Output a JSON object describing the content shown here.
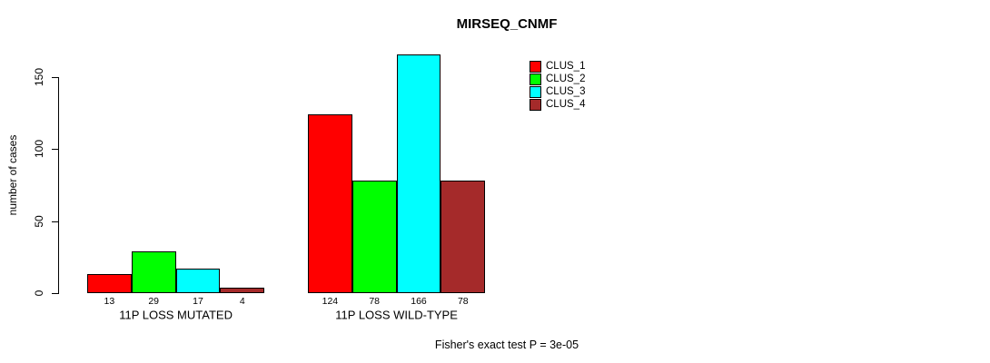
{
  "colors": {
    "background": "#FFFFFF",
    "axis": "#000000",
    "text": "#000000",
    "clus_1": "#FF0000",
    "clus_2": "#00FF00",
    "clus_3": "#00FFFF",
    "clus_4": "#A52A2A"
  },
  "chart_data": {
    "type": "bar",
    "title": "MIRSEQ_CNMF",
    "xlabel": "",
    "ylabel": "number of cases",
    "ylim": [
      0,
      166
    ],
    "yticks": [
      0,
      50,
      100,
      150
    ],
    "grid": false,
    "legend_position": "top-right",
    "categories": [
      "11P LOSS MUTATED",
      "11P LOSS WILD-TYPE"
    ],
    "series": [
      {
        "name": "CLUS_1",
        "color": "#FF0000",
        "values": [
          13,
          124
        ]
      },
      {
        "name": "CLUS_2",
        "color": "#00FF00",
        "values": [
          29,
          78
        ]
      },
      {
        "name": "CLUS_3",
        "color": "#00FFFF",
        "values": [
          17,
          166
        ]
      },
      {
        "name": "CLUS_4",
        "color": "#A52A2A",
        "values": [
          4,
          78
        ]
      }
    ],
    "bar_value_labels": {
      "11P LOSS MUTATED": [
        13,
        29,
        17,
        4
      ],
      "11P LOSS WILD-TYPE": [
        124,
        78,
        166,
        78
      ]
    },
    "annotation": "Fisher's exact test P = 3e-05"
  }
}
